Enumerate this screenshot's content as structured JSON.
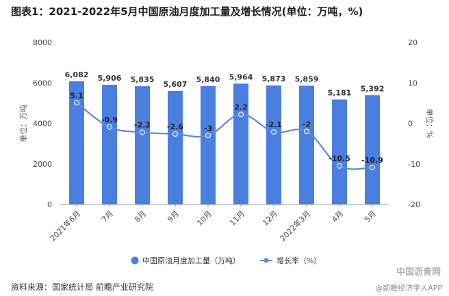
{
  "title": "图表1：2021-2022年5月中国原油月度加工量及增长情况(单位：万吨，%)",
  "source": "资料来源：国家统计局 前瞻产业研究院",
  "watermark": "@前瞻经济学人APP",
  "watermark_logo": "中国沥青网",
  "colors": {
    "bar": "#4A7FE0",
    "line": "#5B8BD6",
    "axis": "#999999",
    "grid": "#e3e3e3"
  },
  "chart_data": {
    "type": "bar",
    "categories": [
      "2021年6月",
      "7月",
      "8月",
      "9月",
      "10月",
      "11月",
      "12月",
      "2022年3月",
      "4月",
      "5月"
    ],
    "series": [
      {
        "name": "中国原油月度加工量（万吨）",
        "type": "bar",
        "axis": "left",
        "values": [
          6082,
          5906,
          5835,
          5607,
          5840,
          5964,
          5873,
          5859,
          5181,
          5392
        ],
        "labels": [
          "6,082",
          "5,906",
          "5,835",
          "5,607",
          "5,840",
          "5,964",
          "5,873",
          "5,859",
          "5,181",
          "5,392"
        ]
      },
      {
        "name": "增长率（%）",
        "type": "line",
        "axis": "right",
        "values": [
          5.1,
          -0.9,
          -2.2,
          -2.6,
          -3,
          2.2,
          -2.1,
          -2,
          -10.5,
          -10.9
        ],
        "labels": [
          "5.1",
          "-0.9",
          "-2.2",
          "-2.6",
          "-3",
          "2.2",
          "-2.1",
          "-2",
          "-10.5",
          "-10.9"
        ]
      }
    ],
    "y_left": {
      "label": "单位：万吨",
      "ylim": [
        0,
        8000
      ],
      "ticks": [
        0,
        2000,
        4000,
        6000,
        8000
      ]
    },
    "y_right": {
      "label": "单位：%",
      "ylim": [
        -20,
        20
      ],
      "ticks": [
        -20,
        -10,
        0,
        10,
        20
      ]
    },
    "grid": false,
    "legend_position": "bottom"
  }
}
